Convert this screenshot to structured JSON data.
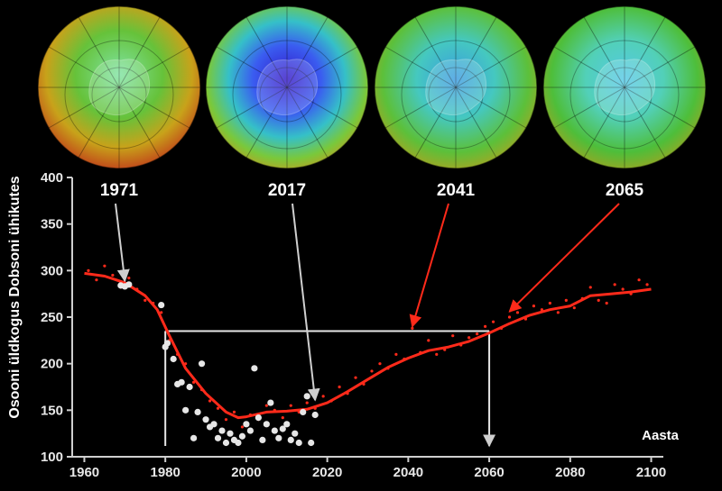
{
  "chart_data": {
    "type": "scatter",
    "title": "",
    "xlabel": "Aasta",
    "ylabel": "Osooni üldkogus Dobsoni ühikutes",
    "xlim": [
      1957,
      2103
    ],
    "ylim": [
      100,
      400
    ],
    "x_ticks": [
      1960,
      1980,
      2000,
      2020,
      2040,
      2060,
      2080,
      2100
    ],
    "y_ticks": [
      100,
      150,
      200,
      250,
      300,
      350,
      400
    ],
    "grid": false,
    "legend": "none",
    "colors": {
      "observed": "#e6e6e6",
      "model": "#ff2a1a",
      "reference": "#e6e6e6",
      "axis": "#cfcfcf"
    },
    "maps": [
      {
        "year": "1971",
        "ozone_level": "high"
      },
      {
        "year": "2017",
        "ozone_level": "low"
      },
      {
        "year": "2041",
        "ozone_level": "medium"
      },
      {
        "year": "2065",
        "ozone_level": "recovered"
      }
    ],
    "annotations": {
      "reference_level": 235,
      "reference_from_year": 1980,
      "reference_to_year": 2060,
      "arrows": [
        {
          "year_label": "1971",
          "target": [
            1970,
            285
          ],
          "color": "#cfcfcf"
        },
        {
          "year_label": "2017",
          "target": [
            2017,
            157
          ],
          "color": "#cfcfcf"
        },
        {
          "year_label": "2041",
          "target": [
            2041,
            236
          ],
          "color": "#ff2a1a"
        },
        {
          "year_label": "2065",
          "target": [
            2065,
            252
          ],
          "color": "#ff2a1a"
        }
      ]
    },
    "model_line": {
      "x": [
        1960,
        1965,
        1970,
        1975,
        1978,
        1981,
        1985,
        1990,
        1995,
        1998,
        2000,
        2005,
        2010,
        2015,
        2020,
        2025,
        2030,
        2035,
        2040,
        2045,
        2050,
        2055,
        2060,
        2065,
        2070,
        2075,
        2080,
        2085,
        2090,
        2095,
        2100
      ],
      "y": [
        297,
        294,
        287,
        273,
        258,
        230,
        195,
        168,
        148,
        142,
        143,
        148,
        149,
        151,
        158,
        170,
        183,
        196,
        206,
        214,
        218,
        224,
        233,
        243,
        252,
        258,
        262,
        273,
        275,
        277,
        280
      ]
    },
    "model_points": {
      "x": [
        1961,
        1963,
        1965,
        1967,
        1969,
        1971,
        1973,
        1975,
        1977,
        1979,
        1981,
        1983,
        1985,
        1987,
        1989,
        1991,
        1993,
        1995,
        1997,
        1999,
        2001,
        2003,
        2005,
        2007,
        2009,
        2011,
        2013,
        2015,
        2017,
        2019,
        2021,
        2023,
        2025,
        2027,
        2029,
        2031,
        2033,
        2035,
        2037,
        2039,
        2041,
        2043,
        2045,
        2047,
        2049,
        2051,
        2053,
        2055,
        2057,
        2059,
        2061,
        2063,
        2065,
        2067,
        2069,
        2071,
        2073,
        2075,
        2077,
        2079,
        2081,
        2083,
        2085,
        2087,
        2089,
        2091,
        2093,
        2095,
        2097,
        2099
      ],
      "y": [
        300,
        290,
        305,
        295,
        282,
        292,
        280,
        268,
        265,
        255,
        225,
        210,
        200,
        180,
        172,
        160,
        152,
        140,
        148,
        132,
        145,
        140,
        155,
        150,
        142,
        155,
        148,
        158,
        152,
        165,
        160,
        175,
        168,
        185,
        178,
        192,
        200,
        195,
        210,
        205,
        238,
        212,
        225,
        210,
        215,
        230,
        220,
        228,
        232,
        240,
        245,
        238,
        250,
        255,
        248,
        262,
        258,
        265,
        255,
        268,
        260,
        270,
        282,
        268,
        265,
        285,
        280,
        275,
        290,
        285
      ]
    },
    "observed_points": {
      "x": [
        1969,
        1970,
        1971,
        1979,
        1980,
        1980.5,
        1982,
        1983,
        1984,
        1985,
        1986,
        1987,
        1988,
        1989,
        1990,
        1991,
        1992,
        1993,
        1994,
        1995,
        1996,
        1997,
        1998,
        1999,
        2000,
        2001,
        2002,
        2003,
        2004,
        2005,
        2006,
        2007,
        2008,
        2009,
        2010,
        2011,
        2012,
        2013,
        2014,
        2015,
        2016,
        2017
      ],
      "y": [
        284,
        283,
        285,
        263,
        218,
        222,
        205,
        178,
        180,
        150,
        175,
        120,
        148,
        200,
        140,
        132,
        135,
        120,
        128,
        115,
        125,
        118,
        115,
        122,
        135,
        128,
        195,
        142,
        118,
        135,
        158,
        128,
        120,
        130,
        135,
        118,
        125,
        115,
        148,
        165,
        115,
        145
      ]
    }
  }
}
